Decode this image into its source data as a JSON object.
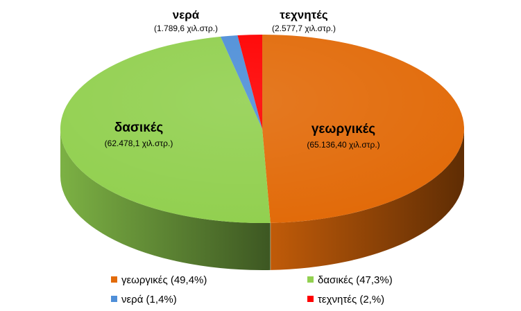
{
  "chart_data": {
    "type": "pie",
    "style": "3d",
    "slices": [
      {
        "name": "γεωργικές",
        "value_label": "(65.136,40  χιλ.στρ.)",
        "value": 65136.4,
        "legend_label": "γεωργικές (49,4%)",
        "color": "#E26B0A"
      },
      {
        "name": "δασικές",
        "value_label": "(62.478,1 χιλ.στρ.)",
        "value": 62478.1,
        "legend_label": "δασικές (47,3%)",
        "color": "#92D050"
      },
      {
        "name": "νερά",
        "value_label": "(1.789,6 χιλ.στρ.)",
        "value": 1789.6,
        "legend_label": "νερά (1,4%)",
        "color": "#4F8FD8"
      },
      {
        "name": "τεχνητές",
        "value_label": "(2.577,7 χιλ.στρ.)",
        "value": 2577.7,
        "legend_label": "τεχνητές (2,%)",
        "color": "#FF0000"
      }
    ],
    "legend_position": "bottom"
  }
}
